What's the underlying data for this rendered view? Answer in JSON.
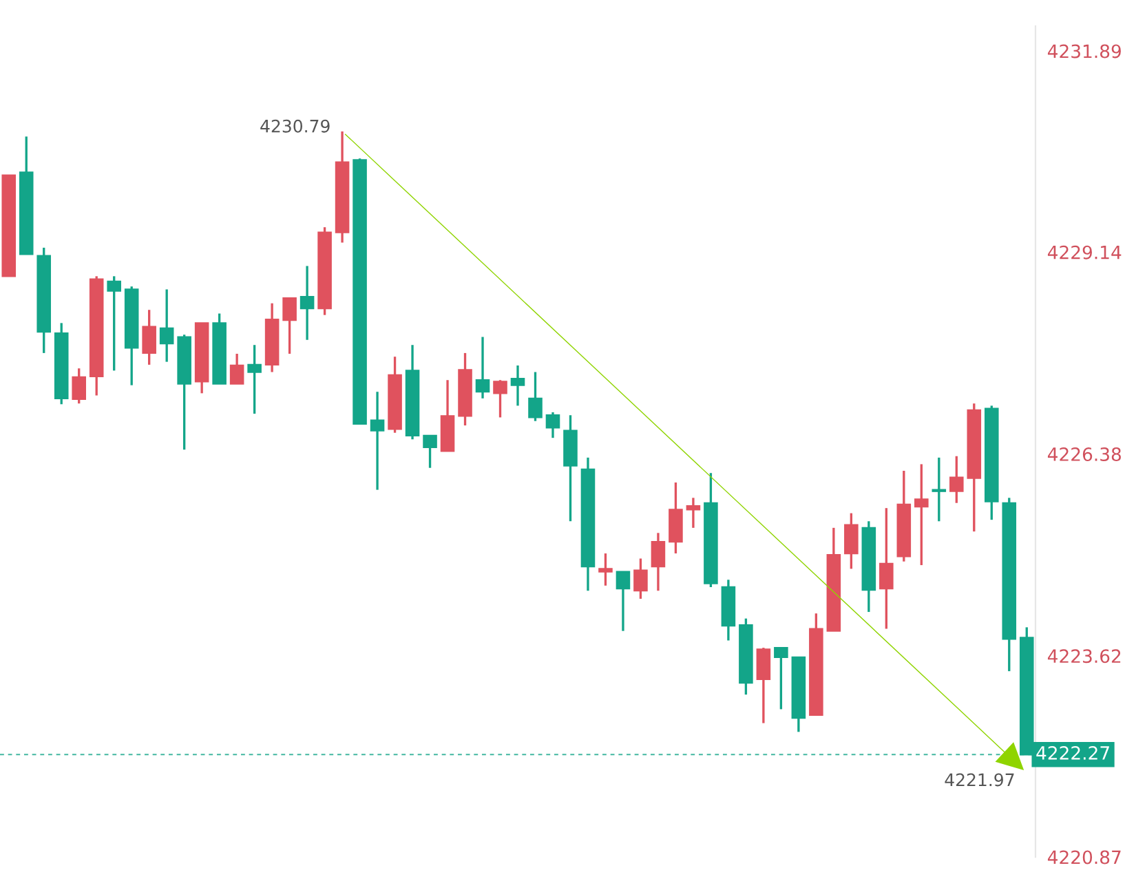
{
  "chart_data": {
    "type": "candlestick",
    "categories": [
      null,
      null,
      null,
      null,
      null,
      null,
      null,
      null,
      null,
      null,
      null,
      null,
      null,
      null,
      null,
      null,
      null,
      null,
      null,
      null,
      null,
      null,
      null,
      null,
      null,
      null,
      null,
      null,
      null,
      null,
      null,
      null,
      null,
      null,
      null,
      null,
      null,
      null,
      null,
      null,
      null,
      null,
      null,
      null,
      null,
      null,
      null,
      null,
      null,
      null,
      null,
      null,
      null,
      null,
      null,
      null,
      null,
      null,
      null
    ],
    "ohlc": [
      [
        4228.81,
        4230.19,
        4228.81,
        4230.19
      ],
      [
        4230.23,
        4230.72,
        4229.11,
        4229.11
      ],
      [
        4229.09,
        4229.2,
        4227.76,
        4228.05
      ],
      [
        4228.03,
        4228.17,
        4227.06,
        4227.14
      ],
      [
        4227.13,
        4227.55,
        4227.07,
        4227.43
      ],
      [
        4227.44,
        4228.81,
        4227.18,
        4228.77
      ],
      [
        4228.74,
        4228.81,
        4227.52,
        4228.61
      ],
      [
        4228.63,
        4228.67,
        4227.32,
        4227.83
      ],
      [
        4227.76,
        4228.35,
        4227.6,
        4228.12
      ],
      [
        4228.1,
        4228.63,
        4227.64,
        4227.89
      ],
      [
        4227.98,
        4228.01,
        4226.44,
        4227.34
      ],
      [
        4227.37,
        4228.17,
        4227.21,
        4228.17
      ],
      [
        4228.17,
        4228.3,
        4227.34,
        4227.34
      ],
      [
        4227.34,
        4227.75,
        4227.34,
        4227.59
      ],
      [
        4227.6,
        4227.87,
        4226.93,
        4227.5
      ],
      [
        4227.6,
        4228.44,
        4227.5,
        4228.22
      ],
      [
        4228.21,
        4228.51,
        4227.75,
        4228.51
      ],
      [
        4228.53,
        4228.95,
        4227.94,
        4228.37
      ],
      [
        4228.37,
        4229.48,
        4228.28,
        4229.41
      ],
      [
        4229.41,
        4230.79,
        4229.27,
        4230.37
      ],
      [
        4230.4,
        4230.42,
        4226.79,
        4226.79
      ],
      [
        4226.84,
        4227.23,
        4225.89,
        4226.7
      ],
      [
        4226.72,
        4227.71,
        4226.67,
        4227.46
      ],
      [
        4227.52,
        4227.87,
        4226.58,
        4226.63
      ],
      [
        4226.63,
        4226.63,
        4226.19,
        4226.47
      ],
      [
        4226.42,
        4227.39,
        4226.42,
        4226.9
      ],
      [
        4226.9,
        4227.76,
        4226.77,
        4227.53
      ],
      [
        4227.39,
        4227.98,
        4227.14,
        4227.23
      ],
      [
        4227.21,
        4227.39,
        4226.88,
        4227.37
      ],
      [
        4227.41,
        4227.59,
        4227.04,
        4227.32
      ],
      [
        4227.14,
        4227.5,
        4226.83,
        4226.88
      ],
      [
        4226.91,
        4226.95,
        4226.6,
        4226.74
      ],
      [
        4226.7,
        4226.91,
        4225.46,
        4226.22
      ],
      [
        4226.17,
        4226.33,
        4224.51,
        4224.84
      ],
      [
        4224.77,
        4225.02,
        4224.58,
        4224.81
      ],
      [
        4224.77,
        4224.77,
        4223.96,
        4224.54
      ],
      [
        4224.51,
        4224.95,
        4224.4,
        4224.79
      ],
      [
        4224.84,
        4225.3,
        4224.51,
        4225.18
      ],
      [
        4225.18,
        4225.99,
        4225.02,
        4225.62
      ],
      [
        4225.62,
        4225.78,
        4225.37,
        4225.67
      ],
      [
        4225.71,
        4226.12,
        4224.56,
        4224.61
      ],
      [
        4224.56,
        4224.66,
        4223.83,
        4224.03
      ],
      [
        4224.04,
        4224.13,
        4223.09,
        4223.25
      ],
      [
        4223.3,
        4223.73,
        4222.7,
        4223.71
      ],
      [
        4223.73,
        4223.73,
        4222.89,
        4223.6
      ],
      [
        4223.6,
        4223.6,
        4222.58,
        4222.77
      ],
      [
        4222.81,
        4224.2,
        4222.81,
        4223.99
      ],
      [
        4223.96,
        4225.37,
        4223.96,
        4225.0
      ],
      [
        4225.02,
        4225.57,
        4224.81,
        4225.41
      ],
      [
        4225.37,
        4225.46,
        4224.22,
        4224.52
      ],
      [
        4224.54,
        4225.64,
        4223.99,
        4224.88
      ],
      [
        4224.98,
        4226.15,
        4224.91,
        4225.69
      ],
      [
        4225.66,
        4226.24,
        4224.86,
        4225.76
      ],
      [
        4225.89,
        4226.33,
        4225.46,
        4225.87
      ],
      [
        4225.87,
        4226.35,
        4225.71,
        4226.06
      ],
      [
        4226.05,
        4227.07,
        4225.32,
        4226.98
      ],
      [
        4227.0,
        4227.04,
        4225.48,
        4225.73
      ],
      [
        4225.71,
        4225.78,
        4223.41,
        4223.85
      ],
      [
        4223.87,
        4224.01,
        4222.27,
        4222.27
      ]
    ],
    "colors": [
      "#e0525e",
      "#13a589",
      "#13a589",
      "#13a589",
      "#e0525e",
      "#e0525e",
      "#13a589",
      "#13a589",
      "#e0525e",
      "#13a589",
      "#13a589",
      "#e0525e",
      "#13a589",
      "#e0525e",
      "#13a589",
      "#e0525e",
      "#e0525e",
      "#13a589",
      "#e0525e",
      "#e0525e",
      "#13a589",
      "#13a589",
      "#e0525e",
      "#13a589",
      "#13a589",
      "#e0525e",
      "#e0525e",
      "#13a589",
      "#e0525e",
      "#13a589",
      "#13a589",
      "#13a589",
      "#13a589",
      "#13a589",
      "#e0525e",
      "#13a589",
      "#e0525e",
      "#e0525e",
      "#e0525e",
      "#e0525e",
      "#13a589",
      "#13a589",
      "#13a589",
      "#e0525e",
      "#13a589",
      "#13a589",
      "#e0525e",
      "#e0525e",
      "#e0525e",
      "#13a589",
      "#e0525e",
      "#e0525e",
      "#e0525e",
      "#13a589",
      "#e0525e",
      "#e0525e",
      "#13a589",
      "#13a589",
      "#13a589"
    ],
    "ylim": [
      4220.87,
      4232.23
    ],
    "yticks": [
      4231.89,
      4229.14,
      4226.38,
      4223.62,
      4220.87
    ],
    "ref_lines": [
      {
        "axis": "y",
        "value": 4222.27,
        "label": "4222.27",
        "color": "#13a589",
        "line_style": "dashed"
      }
    ],
    "annotations": [
      "4230.79",
      "4221.97"
    ],
    "grid": false
  }
}
